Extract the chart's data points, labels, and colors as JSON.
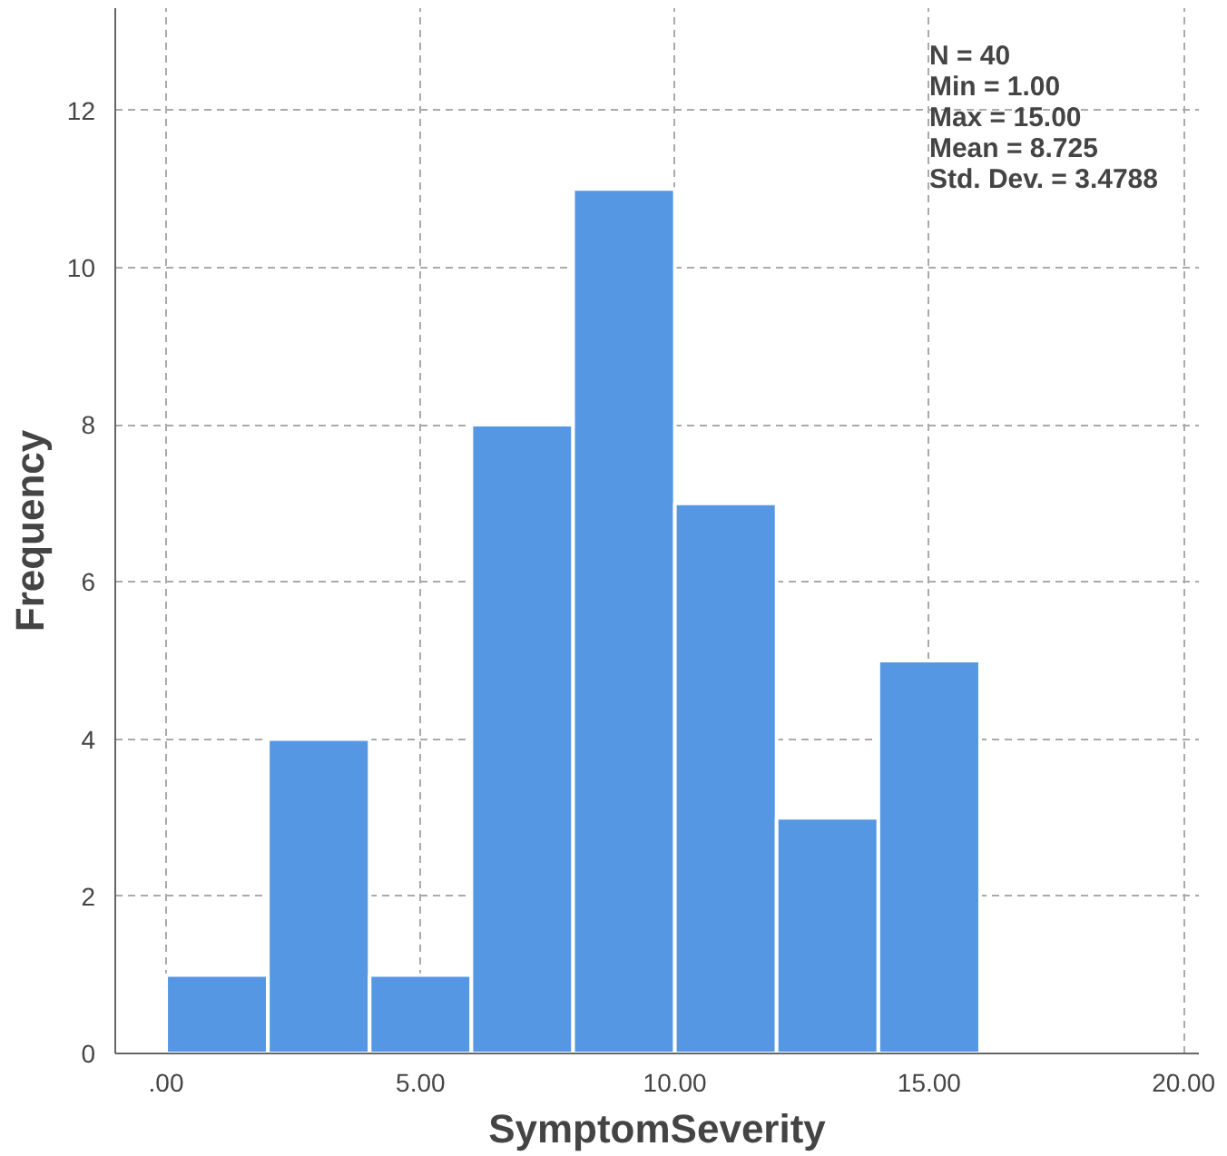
{
  "chart_data": {
    "type": "histogram",
    "xlabel": "SymptomSeverity",
    "ylabel": "Frequency",
    "bins": [
      0,
      2,
      4,
      6,
      8,
      10,
      12,
      14,
      16
    ],
    "values": [
      1,
      4,
      1,
      8,
      11,
      7,
      3,
      5
    ],
    "color": "#5597e3",
    "xlim": [
      -1,
      20.3
    ],
    "ylim": [
      0,
      13.3
    ],
    "xticks": [
      {
        "value": 0,
        "label": ".00"
      },
      {
        "value": 5,
        "label": "5.00"
      },
      {
        "value": 10,
        "label": "10.00"
      },
      {
        "value": 15,
        "label": "15.00"
      },
      {
        "value": 20,
        "label": "20.00"
      }
    ],
    "yticks": [
      0,
      2,
      4,
      6,
      8,
      10,
      12
    ],
    "grid": true,
    "annotations": [
      "N = 40",
      "Min = 1.00",
      "Max = 15.00",
      "Mean = 8.725",
      "Std. Dev. = 3.4788"
    ]
  }
}
